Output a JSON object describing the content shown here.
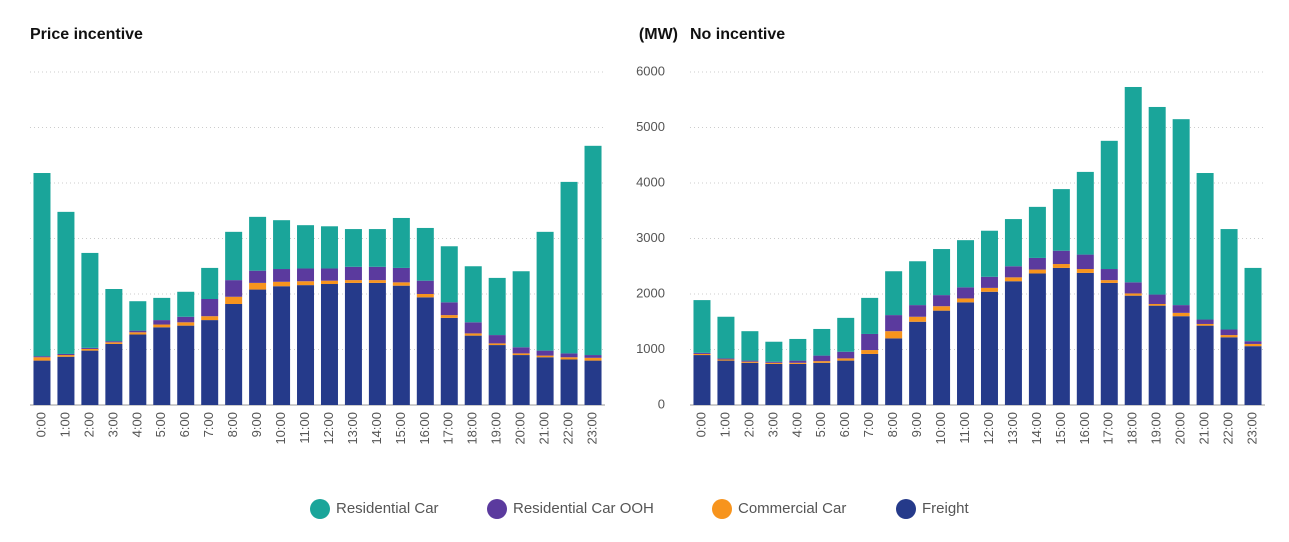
{
  "chart_data": [
    {
      "type": "bar",
      "stacked": true,
      "title": "Price incentive",
      "categories": [
        "0:00",
        "1:00",
        "2:00",
        "3:00",
        "4:00",
        "5:00",
        "6:00",
        "7:00",
        "8:00",
        "9:00",
        "10:00",
        "11:00",
        "12:00",
        "13:00",
        "14:00",
        "15:00",
        "16:00",
        "17:00",
        "18:00",
        "19:00",
        "20:00",
        "21:00",
        "22:00",
        "23:00"
      ],
      "ylim": [
        0,
        6000
      ],
      "yticks": [
        0,
        1000,
        2000,
        3000,
        4000,
        5000,
        6000
      ],
      "grid": true,
      "series": [
        {
          "name": "Freight",
          "color": "#253a8a",
          "values": [
            800,
            870,
            980,
            1100,
            1270,
            1400,
            1430,
            1530,
            1820,
            2080,
            2140,
            2160,
            2180,
            2200,
            2200,
            2150,
            1940,
            1570,
            1250,
            1080,
            900,
            860,
            820,
            800
          ]
        },
        {
          "name": "Commercial Car",
          "color": "#f7941d",
          "values": [
            60,
            30,
            30,
            30,
            40,
            50,
            60,
            70,
            130,
            120,
            80,
            70,
            60,
            50,
            50,
            60,
            60,
            50,
            40,
            30,
            30,
            30,
            40,
            50
          ]
        },
        {
          "name": "Residential Car OOH",
          "color": "#5b3a9e",
          "values": [
            20,
            20,
            20,
            20,
            30,
            80,
            100,
            310,
            300,
            220,
            230,
            230,
            220,
            240,
            240,
            260,
            240,
            230,
            200,
            150,
            110,
            90,
            70,
            50
          ]
        },
        {
          "name": "Residential Car",
          "color": "#1aa59a",
          "values": [
            3300,
            2560,
            1710,
            940,
            530,
            400,
            450,
            560,
            870,
            970,
            880,
            780,
            760,
            680,
            680,
            900,
            950,
            1010,
            1010,
            1030,
            1370,
            2140,
            3090,
            3770
          ]
        }
      ]
    },
    {
      "type": "bar",
      "stacked": true,
      "title": "No incentive",
      "y_label": "(MW)",
      "categories": [
        "0:00",
        "1:00",
        "2:00",
        "3:00",
        "4:00",
        "5:00",
        "6:00",
        "7:00",
        "8:00",
        "9:00",
        "10:00",
        "11:00",
        "12:00",
        "13:00",
        "14:00",
        "15:00",
        "16:00",
        "17:00",
        "18:00",
        "19:00",
        "20:00",
        "21:00",
        "22:00",
        "23:00"
      ],
      "ylim": [
        0,
        6000
      ],
      "yticks": [
        0,
        1000,
        2000,
        3000,
        4000,
        5000,
        6000
      ],
      "grid": true,
      "series": [
        {
          "color": "#253a8a",
          "values": [
            900,
            800,
            760,
            740,
            740,
            760,
            800,
            920,
            1200,
            1500,
            1700,
            1850,
            2040,
            2230,
            2370,
            2470,
            2380,
            2200,
            1970,
            1790,
            1600,
            1430,
            1220,
            1060
          ]
        },
        {
          "color": "#f7941d",
          "values": [
            20,
            20,
            20,
            20,
            20,
            30,
            40,
            70,
            130,
            90,
            80,
            70,
            70,
            70,
            70,
            70,
            70,
            50,
            40,
            30,
            60,
            30,
            40,
            40
          ]
        },
        {
          "color": "#5b3a9e",
          "values": [
            20,
            20,
            20,
            20,
            40,
            100,
            120,
            290,
            290,
            210,
            200,
            200,
            200,
            200,
            210,
            240,
            260,
            200,
            200,
            170,
            140,
            80,
            100,
            50
          ]
        },
        {
          "color": "#1aa59a",
          "values": [
            950,
            750,
            530,
            360,
            390,
            480,
            610,
            650,
            790,
            790,
            830,
            850,
            830,
            850,
            920,
            1110,
            1490,
            2310,
            3520,
            3380,
            3350,
            2640,
            1810,
            1320
          ]
        }
      ]
    }
  ]
}
